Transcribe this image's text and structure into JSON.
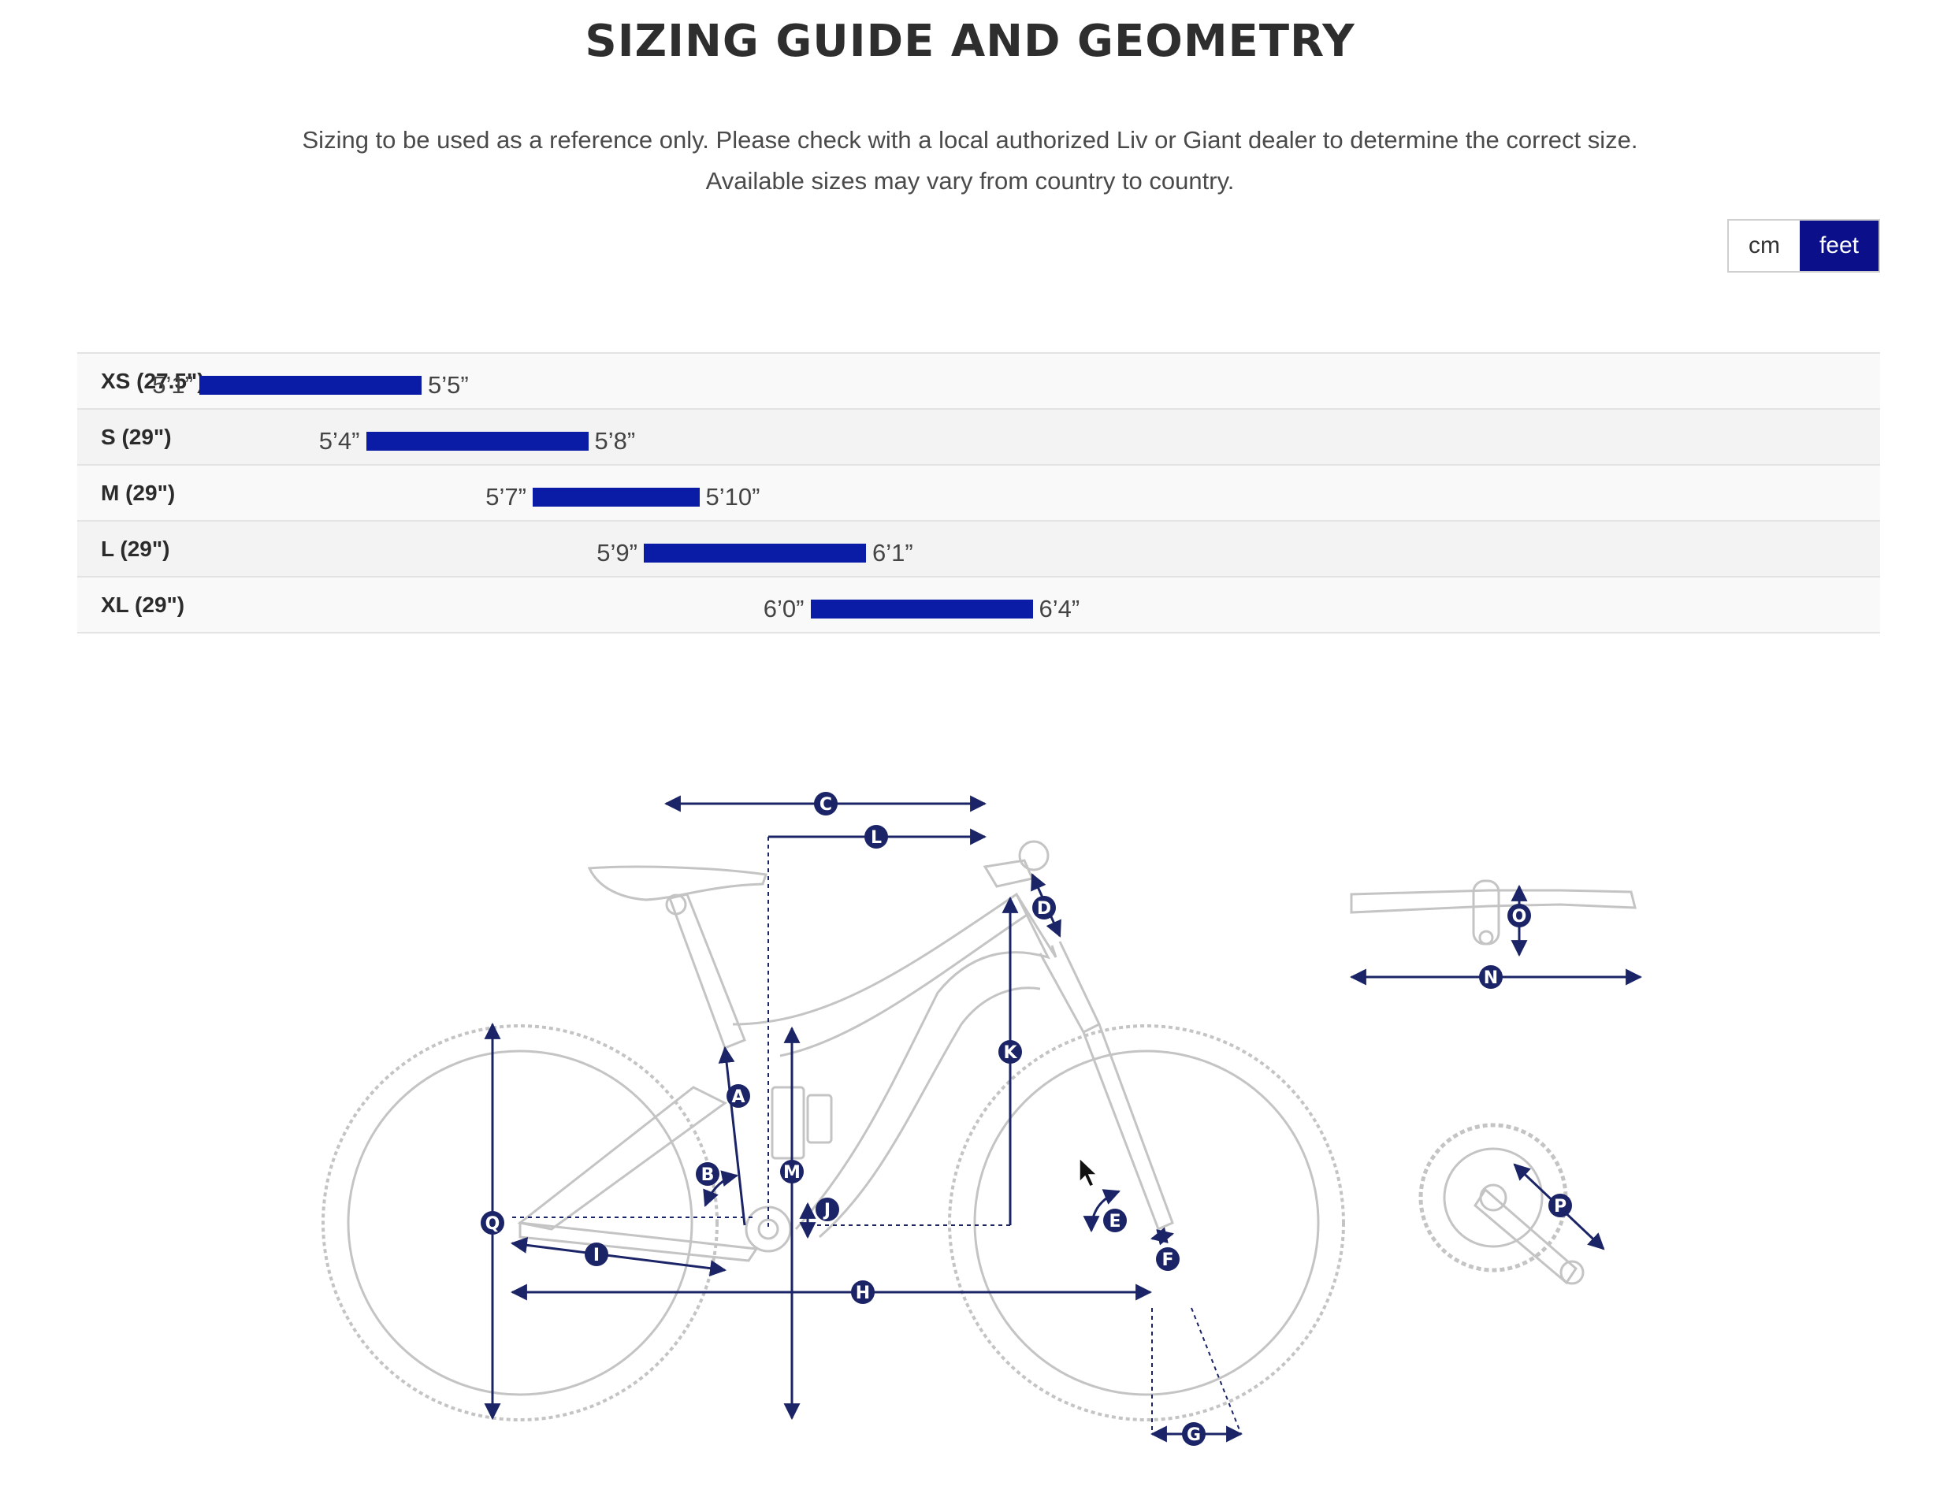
{
  "header": {
    "title": "SIZING GUIDE AND GEOMETRY",
    "notice_line1": "Sizing to be used as a reference only. Please check with a local authorized Liv or Giant dealer to determine the correct size.",
    "notice_line2": "Available sizes may vary from country to country."
  },
  "unit_toggle": {
    "options": [
      "cm",
      "feet"
    ],
    "selected": "feet"
  },
  "sizes": [
    {
      "label": "XS (27.5\")",
      "min": "5’1”",
      "max": "5’5”",
      "min_in": 61,
      "max_in": 65
    },
    {
      "label": "S (29\")",
      "min": "5’4”",
      "max": "5’8”",
      "min_in": 64,
      "max_in": 68
    },
    {
      "label": "M (29\")",
      "min": "5’7”",
      "max": "5’10”",
      "min_in": 67,
      "max_in": 70
    },
    {
      "label": "L (29\")",
      "min": "5’9”",
      "max": "6’1”",
      "min_in": 69,
      "max_in": 73
    },
    {
      "label": "XL (29\")",
      "min": "6’0”",
      "max": "6’4”",
      "min_in": 72,
      "max_in": 76
    }
  ],
  "diagram": {
    "accent_color": "#1b2466",
    "frame_color": "#c4c4c4",
    "labels": [
      "A",
      "B",
      "C",
      "D",
      "E",
      "F",
      "G",
      "H",
      "I",
      "J",
      "K",
      "L",
      "M",
      "N",
      "O",
      "P",
      "Q"
    ]
  },
  "colors": {
    "bar": "#0a1ba5",
    "toggle_active": "#0b0f8a"
  }
}
